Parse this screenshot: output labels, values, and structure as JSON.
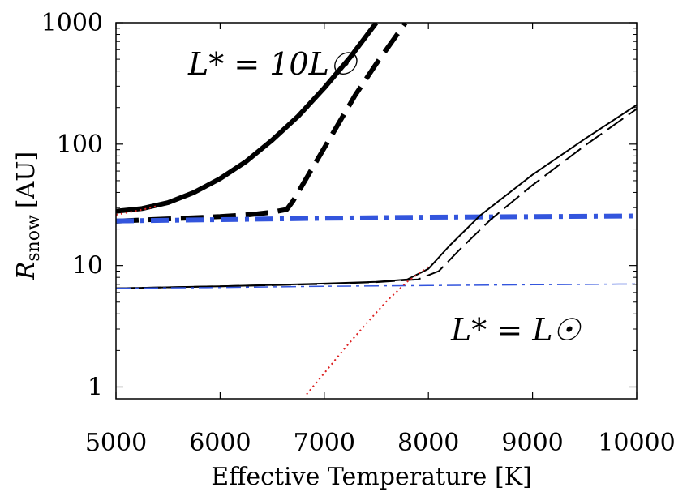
{
  "chart_data": {
    "type": "line",
    "title": "",
    "xlabel": "Effective Temperature [K]",
    "ylabel_main": "R",
    "ylabel_sub": "snow",
    "ylabel_unit": "[AU]",
    "xlim": [
      5000,
      10000
    ],
    "ylim": [
      0.8,
      1000
    ],
    "yscale": "log",
    "x_ticks": [
      5000,
      6000,
      7000,
      8000,
      9000,
      10000
    ],
    "x_tick_labels": [
      "5000",
      "6000",
      "7000",
      "8000",
      "9000",
      "10000"
    ],
    "y_ticks": [
      1,
      10,
      100,
      1000
    ],
    "y_tick_labels": [
      "1",
      "10",
      "100",
      "1000"
    ],
    "annotations": [
      {
        "text": "L* = 10L☉",
        "near": "upper-left"
      },
      {
        "text": "L* = L☉",
        "near": "lower-right"
      }
    ],
    "series": [
      {
        "name": "10Lsun-solid",
        "color": "#000000",
        "style": "solid",
        "width": 6,
        "x": [
          5000,
          5250,
          5500,
          5750,
          6000,
          6250,
          6500,
          6750,
          7000,
          7250,
          7500
        ],
        "y": [
          28,
          29.5,
          33,
          40,
          52,
          72,
          108,
          170,
          290,
          520,
          1000
        ]
      },
      {
        "name": "10Lsun-dashed",
        "color": "#000000",
        "style": "dashed",
        "width": 6,
        "x": [
          5000,
          5500,
          6000,
          6300,
          6500,
          6640,
          6700,
          7000,
          7300,
          7500,
          7780
        ],
        "y": [
          23.2,
          24.2,
          25.3,
          26.3,
          27.5,
          29,
          34,
          93,
          255,
          460,
          1000
        ]
      },
      {
        "name": "10Lsun-dashdot",
        "color": "#3355dd",
        "style": "dashdot",
        "width": 6,
        "x": [
          5000,
          6000,
          7000,
          8000,
          9000,
          10000
        ],
        "y": [
          23.3,
          23.9,
          24.5,
          25.0,
          25.3,
          25.6
        ]
      },
      {
        "name": "Lsun-solid",
        "color": "#000000",
        "style": "solid",
        "width": 2,
        "x": [
          5000,
          6000,
          7000,
          7500,
          7800,
          8000,
          8200,
          8500,
          9000,
          9500,
          10000
        ],
        "y": [
          6.5,
          6.75,
          7.1,
          7.35,
          7.7,
          9.4,
          14.5,
          26,
          56,
          110,
          210
        ]
      },
      {
        "name": "Lsun-dashed",
        "color": "#000000",
        "style": "dashed",
        "width": 2,
        "x": [
          5000,
          6000,
          7000,
          7500,
          7900,
          8100,
          8300,
          8600,
          9000,
          9500,
          10000
        ],
        "y": [
          6.5,
          6.75,
          7.05,
          7.3,
          7.7,
          9.0,
          13.5,
          24,
          46,
          97,
          195
        ]
      },
      {
        "name": "Lsun-dashdot",
        "color": "#3355dd",
        "style": "dashdot",
        "width": 1.5,
        "x": [
          5000,
          6000,
          7000,
          8000,
          9000,
          10000
        ],
        "y": [
          6.5,
          6.6,
          6.75,
          6.85,
          6.95,
          7.05
        ]
      },
      {
        "name": "red-dotted-upper",
        "color": "#dd2222",
        "style": "dotted",
        "width": 2,
        "x": [
          5000,
          5100,
          5200,
          5300,
          5400
        ],
        "y": [
          26.2,
          27.2,
          28.3,
          29.5,
          31.0
        ]
      },
      {
        "name": "red-dotted-lower",
        "color": "#dd2222",
        "style": "dotted",
        "width": 2,
        "x": [
          6830,
          7000,
          7200,
          7400,
          7600,
          7800,
          8000
        ],
        "y": [
          0.87,
          1.3,
          2.1,
          3.3,
          5.1,
          7.4,
          9.8
        ]
      }
    ]
  }
}
